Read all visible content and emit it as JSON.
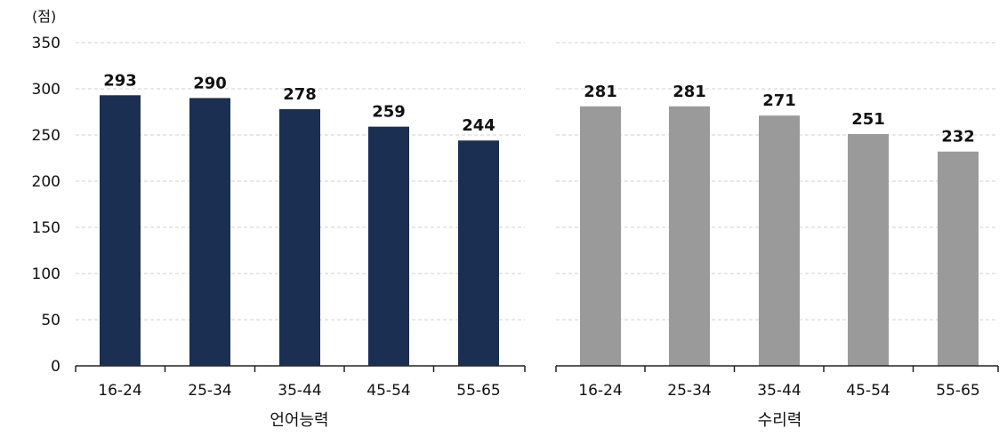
{
  "unit_label": "(점)",
  "chart_data": [
    {
      "type": "bar",
      "xlabel": "언어능력",
      "ylabel": "(점)",
      "ylim": [
        0,
        350
      ],
      "yticks": [
        0,
        50,
        100,
        150,
        200,
        250,
        300,
        350
      ],
      "grid": true,
      "categories": [
        "16-24",
        "25-34",
        "35-44",
        "45-54",
        "55-65"
      ],
      "values": [
        293,
        290,
        278,
        259,
        244
      ],
      "color": "#1b2f52",
      "data_labels": true
    },
    {
      "type": "bar",
      "xlabel": "수리력",
      "ylim": [
        0,
        350
      ],
      "yticks": [
        0,
        50,
        100,
        150,
        200,
        250,
        300,
        350
      ],
      "grid": true,
      "categories": [
        "16-24",
        "25-34",
        "35-44",
        "45-54",
        "55-65"
      ],
      "values": [
        281,
        281,
        271,
        251,
        232
      ],
      "color": "#9a9a9a",
      "data_labels": true
    }
  ]
}
